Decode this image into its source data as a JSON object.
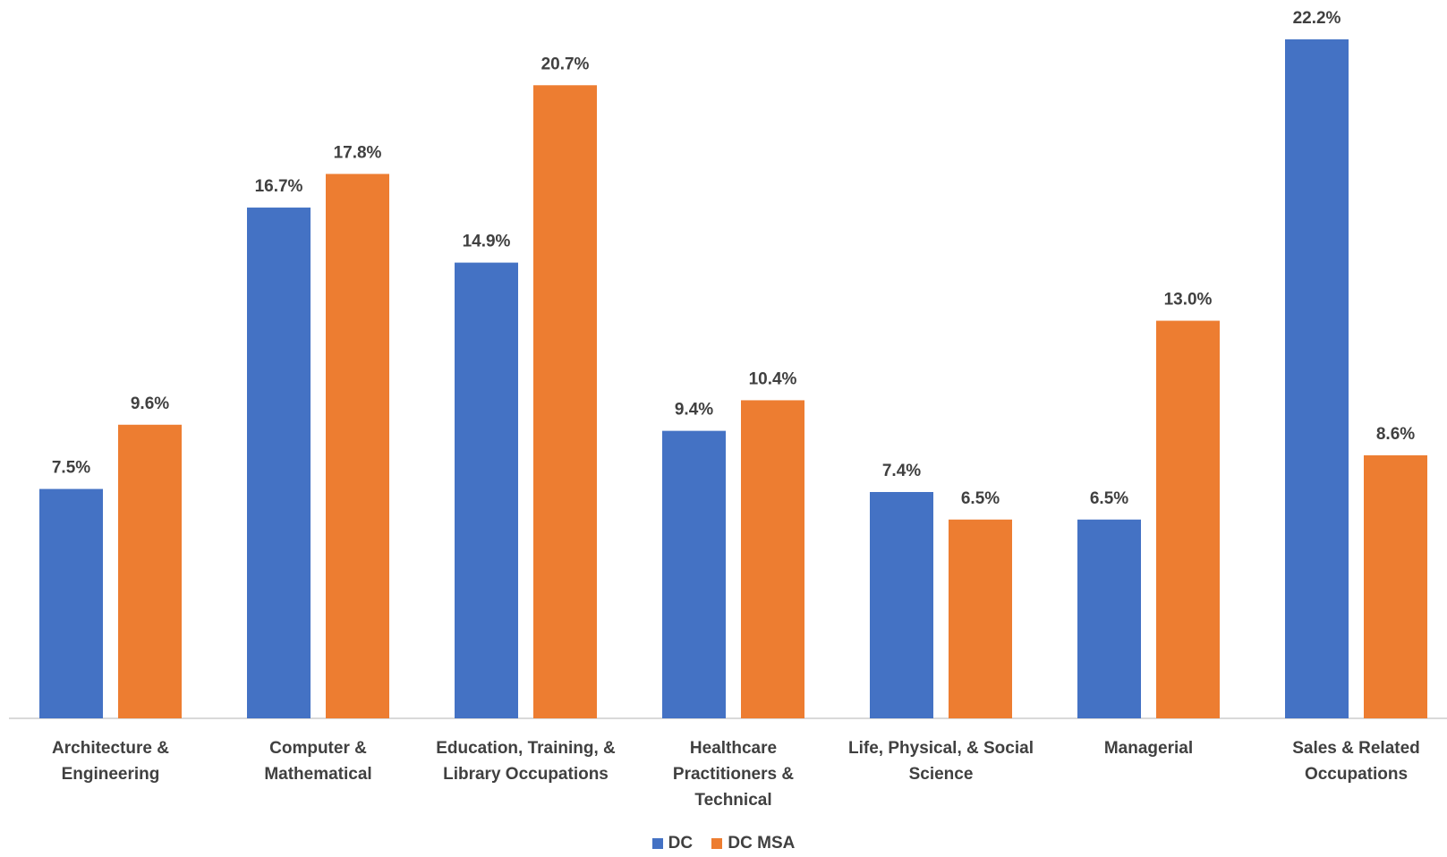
{
  "chart_data": {
    "type": "bar",
    "categories": [
      [
        "Architecture &",
        "Engineering"
      ],
      [
        "Computer &",
        "Mathematical"
      ],
      [
        "Education, Training, &",
        "Library Occupations"
      ],
      [
        "Healthcare",
        "Practitioners &",
        "Technical"
      ],
      [
        "Life, Physical, & Social",
        "Science"
      ],
      [
        "Managerial"
      ],
      [
        "Sales & Related",
        "Occupations"
      ]
    ],
    "series": [
      {
        "name": "DC",
        "color": "#4472C4",
        "values": [
          7.5,
          16.7,
          14.9,
          9.4,
          7.4,
          6.5,
          22.2
        ],
        "labels": [
          "7.5%",
          "16.7%",
          "14.9%",
          "9.4%",
          "7.4%",
          "6.5%",
          "22.2%"
        ]
      },
      {
        "name": "DC MSA",
        "color": "#ED7D31",
        "values": [
          9.6,
          17.8,
          20.7,
          10.4,
          6.5,
          13.0,
          8.6
        ],
        "labels": [
          "9.6%",
          "17.8%",
          "20.7%",
          "10.4%",
          "6.5%",
          "13.0%",
          "8.6%"
        ]
      }
    ],
    "ylim": [
      0,
      22.2
    ],
    "grid": false,
    "legend_position": "bottom"
  }
}
